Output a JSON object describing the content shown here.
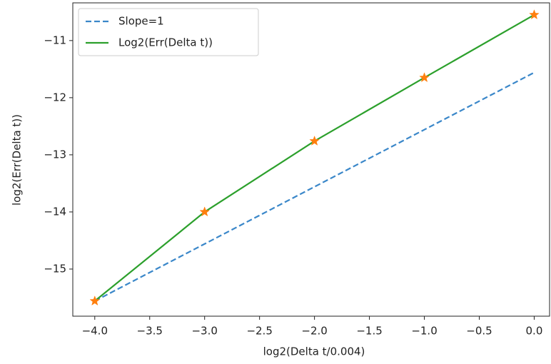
{
  "chart_data": {
    "type": "line",
    "xlabel": "log2(Delta t/0.004)",
    "ylabel": "log2(Err(Delta t))",
    "x": [
      -4,
      -3,
      -2,
      -1,
      0
    ],
    "series": [
      {
        "name": "Slope=1",
        "color": "#3a87c9",
        "dash": true,
        "values": [
          -15.56,
          -14.56,
          -13.56,
          -12.56,
          -11.56
        ]
      },
      {
        "name": "Log2(Err(Delta t))",
        "color": "#2ca02c",
        "values": [
          -15.56,
          -14.0,
          -12.76,
          -11.65,
          -10.55
        ]
      },
      {
        "color": "#ff7f0e",
        "marker": "star",
        "values": [
          -15.56,
          -14.0,
          -12.76,
          -11.65,
          -10.55
        ]
      }
    ],
    "xlim": [
      -4.2,
      0.14
    ],
    "ylim": [
      -15.825,
      -10.34
    ],
    "xticks": [
      {
        "value": -4,
        "label": "−4.0"
      },
      {
        "value": -3.5,
        "label": "−3.5"
      },
      {
        "value": -3,
        "label": "−3.0"
      },
      {
        "value": -2.5,
        "label": "−2.5"
      },
      {
        "value": -2,
        "label": "−2.0"
      },
      {
        "value": -1.5,
        "label": "−1.5"
      },
      {
        "value": -1,
        "label": "−1.0"
      },
      {
        "value": -0.5,
        "label": "−0.5"
      },
      {
        "value": 0,
        "label": "0.0"
      }
    ],
    "yticks": [
      {
        "value": -15,
        "label": "−15"
      },
      {
        "value": -14,
        "label": "−14"
      },
      {
        "value": -13,
        "label": "−13"
      },
      {
        "value": -12,
        "label": "−12"
      },
      {
        "value": -11,
        "label": "−11"
      }
    ],
    "legend": "upper left"
  }
}
